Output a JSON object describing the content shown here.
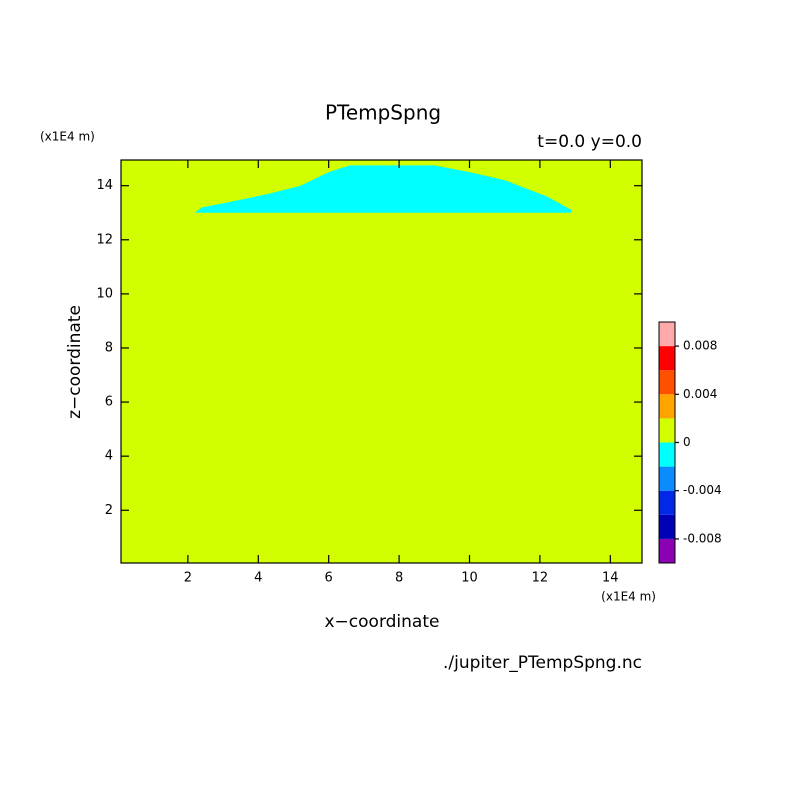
{
  "chart_data": {
    "type": "contour",
    "title": "PTempSpng",
    "subtitle": "t=0.0 y=0.0",
    "x_label": "x−coordinate",
    "y_label": "z−coordinate",
    "x_unit": "(x1E4 m)",
    "y_unit": "(x1E4 m)",
    "source": "./jupiter_PTempSpng.nc",
    "xlim": [
      0.1,
      14.9
    ],
    "ylim": [
      0.05,
      14.95
    ],
    "xticks": [
      2,
      4,
      6,
      8,
      10,
      12,
      14
    ],
    "yticks": [
      2,
      4,
      6,
      8,
      10,
      12,
      14
    ],
    "levels": [
      -0.01,
      -0.008,
      -0.006,
      -0.004,
      -0.002,
      0,
      0.002,
      0.004,
      0.006,
      0.008,
      0.01
    ],
    "colors": [
      "#8c00b4",
      "#0000b4",
      "#0028e6",
      "#0a8cff",
      "#00ffff",
      "#d2ff00",
      "#ffa500",
      "#ff5000",
      "#ff0000",
      "#ffaaaa"
    ],
    "colorbar_ticks": [
      -0.008,
      -0.004,
      0,
      0.004,
      0.008
    ],
    "background_bin": 5,
    "regions": [
      {
        "bin": 4,
        "x": [
          2.2,
          2.4,
          3.2,
          4.3,
          5.2,
          6.0,
          6.6,
          9.0,
          10.0,
          11.0,
          12.2,
          12.9,
          12.9
        ],
        "z": [
          13.0,
          13.2,
          13.4,
          13.7,
          14.0,
          14.5,
          14.75,
          14.75,
          14.5,
          14.2,
          13.6,
          13.1,
          13.0
        ]
      }
    ]
  }
}
